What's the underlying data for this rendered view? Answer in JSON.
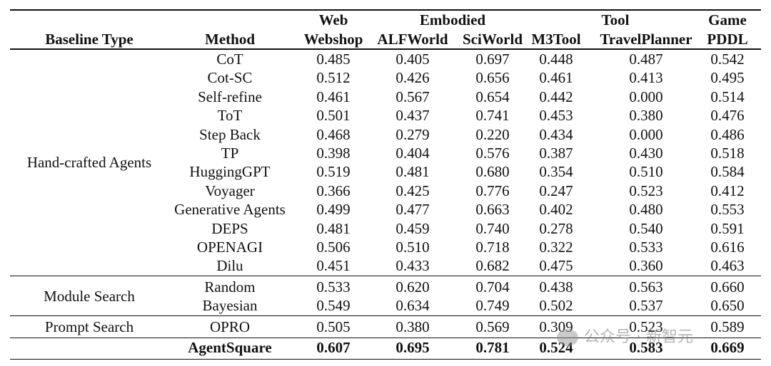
{
  "table": {
    "group_headers": [
      {
        "label": "Web"
      },
      {
        "label": "Embodied"
      },
      {
        "label": "Tool"
      },
      {
        "label": "Game"
      }
    ],
    "column_headers": [
      "Baseline Type",
      "Method",
      "Webshop",
      "ALFWorld",
      "SciWorld",
      "M3Tool",
      "TravelPlanner",
      "PDDL"
    ],
    "groups": [
      {
        "type": "Hand-crafted Agents",
        "rows": [
          {
            "method": "CoT",
            "values": [
              "0.485",
              "0.405",
              "0.697",
              "0.448",
              "0.487",
              "0.542"
            ]
          },
          {
            "method": "Cot-SC",
            "values": [
              "0.512",
              "0.426",
              "0.656",
              "0.461",
              "0.413",
              "0.495"
            ]
          },
          {
            "method": "Self-refine",
            "values": [
              "0.461",
              "0.567",
              "0.654",
              "0.442",
              "0.000",
              "0.514"
            ]
          },
          {
            "method": "ToT",
            "values": [
              "0.501",
              "0.437",
              "0.741",
              "0.453",
              "0.380",
              "0.476"
            ]
          },
          {
            "method": "Step Back",
            "values": [
              "0.468",
              "0.279",
              "0.220",
              "0.434",
              "0.000",
              "0.486"
            ]
          },
          {
            "method": "TP",
            "values": [
              "0.398",
              "0.404",
              "0.576",
              "0.387",
              "0.430",
              "0.518"
            ]
          },
          {
            "method": "HuggingGPT",
            "values": [
              "0.519",
              "0.481",
              "0.680",
              "0.354",
              "0.510",
              "0.584"
            ]
          },
          {
            "method": "Voyager",
            "values": [
              "0.366",
              "0.425",
              "0.776",
              "0.247",
              "0.523",
              "0.412"
            ]
          },
          {
            "method": "Generative Agents",
            "values": [
              "0.499",
              "0.477",
              "0.663",
              "0.402",
              "0.480",
              "0.553"
            ]
          },
          {
            "method": "DEPS",
            "values": [
              "0.481",
              "0.459",
              "0.740",
              "0.278",
              "0.540",
              "0.591"
            ]
          },
          {
            "method": "OPENAGI",
            "values": [
              "0.506",
              "0.510",
              "0.718",
              "0.322",
              "0.533",
              "0.616"
            ]
          },
          {
            "method": "Dilu",
            "values": [
              "0.451",
              "0.433",
              "0.682",
              "0.475",
              "0.360",
              "0.463"
            ]
          }
        ]
      },
      {
        "type": "Module Search",
        "rows": [
          {
            "method": "Random",
            "values": [
              "0.533",
              "0.620",
              "0.704",
              "0.438",
              "0.563",
              "0.660"
            ]
          },
          {
            "method": "Bayesian",
            "values": [
              "0.549",
              "0.634",
              "0.749",
              "0.502",
              "0.537",
              "0.650"
            ]
          }
        ]
      },
      {
        "type": "Prompt Search",
        "rows": [
          {
            "method": "OPRO",
            "values": [
              "0.505",
              "0.380",
              "0.569",
              "0.309",
              "0.523",
              "0.589"
            ]
          }
        ]
      },
      {
        "type": "",
        "rows": [
          {
            "method": "AgentSquare",
            "values": [
              "0.607",
              "0.695",
              "0.781",
              "0.524",
              "0.583",
              "0.669"
            ],
            "bold": true
          }
        ]
      }
    ]
  },
  "watermark": {
    "text": "公众号 · 新智元",
    "icon": "wechat-logo-icon"
  }
}
